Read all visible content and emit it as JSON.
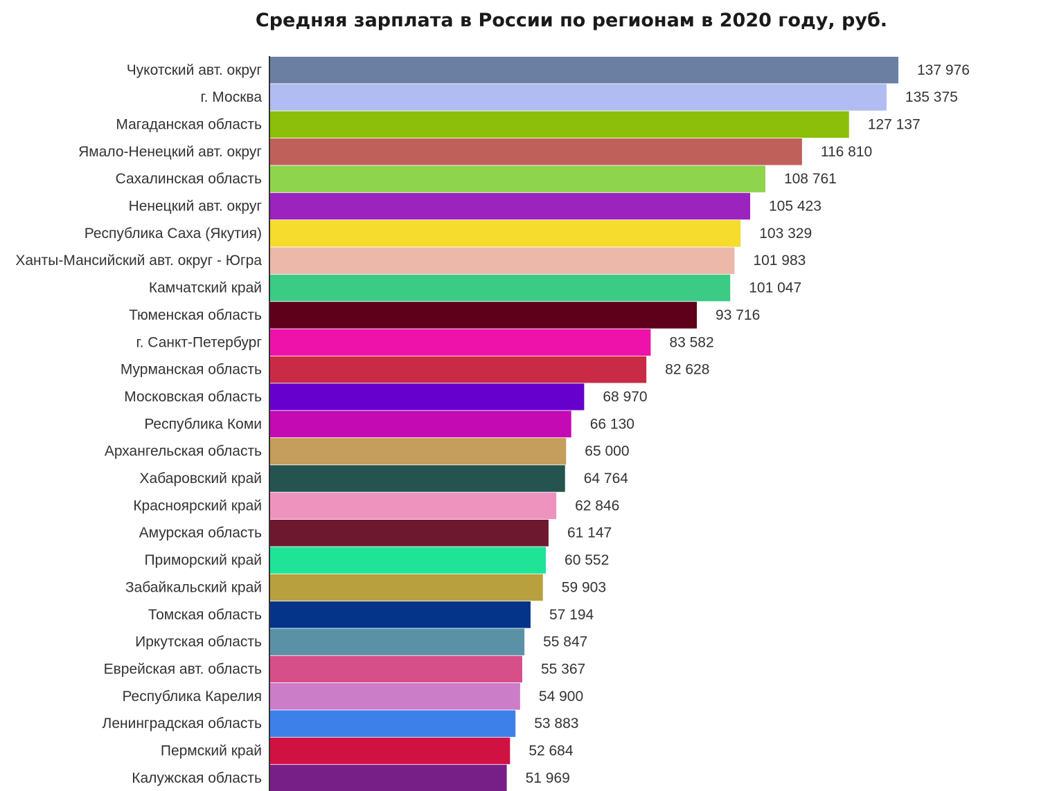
{
  "chart_data": {
    "type": "bar",
    "orientation": "horizontal",
    "title": "Средняя зарплата в России по регионам в 2020 году, руб.",
    "xlabel": "",
    "ylabel": "",
    "xlim": [
      0,
      137976
    ],
    "grid": false,
    "legend": "none",
    "categories": [
      "Чукотский авт. округ",
      "г. Москва",
      "Магаданская область",
      "Ямало-Ненецкий  авт. округ",
      "Сахалинская область",
      "Ненецкий авт. округ",
      "Республика Саха (Якутия)",
      "Ханты-Мансийский авт. округ - Югра",
      "Камчатский край",
      "Тюменская область",
      "г. Санкт-Петербург",
      "Мурманская область",
      "Московская область",
      "Республика Коми",
      "Архангельская область",
      "Хабаровский край",
      "Красноярский край",
      "Амурская область",
      "Приморский край",
      "Забайкальский край",
      "Томская область",
      "Иркутская область",
      "Еврейская авт. область",
      "Республика Карелия",
      "Ленинградская область",
      "Пермский край",
      "Калужская область"
    ],
    "values": [
      137976,
      135375,
      127137,
      116810,
      108761,
      105423,
      103329,
      101983,
      101047,
      93716,
      83582,
      82628,
      68970,
      66130,
      65000,
      64764,
      62846,
      61147,
      60552,
      59903,
      57194,
      55847,
      55367,
      54900,
      53883,
      52684,
      51969
    ],
    "value_labels": [
      "137 976",
      "135 375",
      "127 137",
      "116 810",
      "108 761",
      "105 423",
      "103 329",
      "101 983",
      "101 047",
      "93 716",
      "83 582",
      "82 628",
      "68 970",
      "66 130",
      "65 000",
      "64 764",
      "62 846",
      "61 147",
      "60 552",
      "59 903",
      "57 194",
      "55 847",
      "55 367",
      "54 900",
      "53 883",
      "52 684",
      "51 969"
    ],
    "colors": [
      "#6a7fa2",
      "#b0bcf2",
      "#8cbf0a",
      "#c0605a",
      "#8ed44d",
      "#9b23be",
      "#f5dc2d",
      "#ecb8aa",
      "#3ccb84",
      "#5e0019",
      "#ee12ab",
      "#c92a46",
      "#6600cc",
      "#c40ab2",
      "#c59d5c",
      "#245350",
      "#ee93be",
      "#6e182f",
      "#1fe498",
      "#b8a03f",
      "#043489",
      "#5b91a5",
      "#d64f88",
      "#cc7dc8",
      "#3d80ea",
      "#d01243",
      "#781f87"
    ]
  }
}
